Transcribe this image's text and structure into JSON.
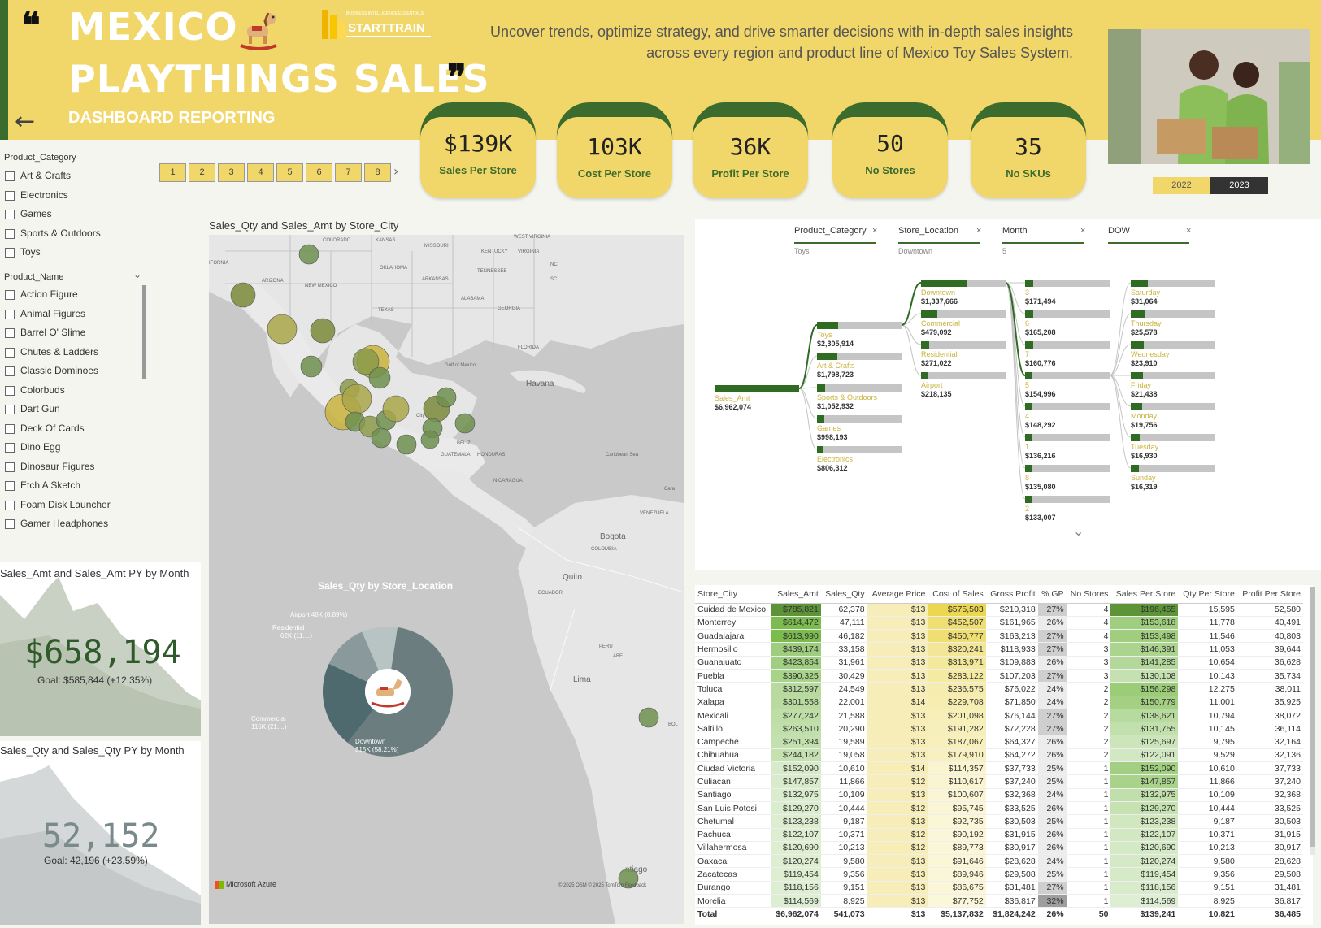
{
  "header": {
    "title_line1": "MEXICO",
    "title_line2": "PLAYTHINGS SALES",
    "subtitle": "DASHBOARD REPORTING",
    "logo_small": "BUSINESS INTELLIGENCE ESSENTIALS",
    "logo_text": "STARTTRAIN",
    "tagline": "Uncover trends, optimize strategy, and drive smarter decisions with in-depth sales insights across every region and product line of Mexico Toy Sales System.",
    "quote_open": "❝",
    "quote_close": "❞",
    "back_icon": "←"
  },
  "year_slicer": {
    "options": [
      "2022",
      "2023"
    ],
    "selected": "2023"
  },
  "kpis": [
    {
      "value": "$139K",
      "label": "Sales Per Store"
    },
    {
      "value": "103K",
      "label": "Cost Per Store"
    },
    {
      "value": "36K",
      "label": "Profit Per Store"
    },
    {
      "value": "50",
      "label": "No Stores"
    },
    {
      "value": "35",
      "label": "No SKUs"
    }
  ],
  "page_nav": {
    "pages": [
      "1",
      "2",
      "3",
      "4",
      "5",
      "6",
      "7",
      "8"
    ],
    "next_icon": "›"
  },
  "slicers": {
    "category_title": "Product_Category",
    "categories": [
      "Art & Crafts",
      "Electronics",
      "Games",
      "Sports & Outdoors",
      "Toys"
    ],
    "product_title": "Product_Name",
    "products": [
      "Action Figure",
      "Animal Figures",
      "Barrel O' Slime",
      "Chutes & Ladders",
      "Classic Dominoes",
      "Colorbuds",
      "Dart Gun",
      "Deck Of Cards",
      "Dino Egg",
      "Dinosaur Figures",
      "Etch A Sketch",
      "Foam Disk Launcher",
      "Gamer Headphones"
    ]
  },
  "sales_card": {
    "title": "Sales_Amt and Sales_Amt PY by Month",
    "value": "$658,194",
    "goal": "Goal: $585,844 (+12.35%)"
  },
  "qty_card": {
    "title": "Sales_Qty and Sales_Qty PY by Month",
    "value": "52,152",
    "goal": "Goal: 42,196 (+23.59%)"
  },
  "map": {
    "title": "Sales_Qty and Sales_Amt by Store_City",
    "labels": {
      "colorado": "COLORADO",
      "kansas": "KANSAS",
      "missouri": "MISSOURI",
      "kentucky": "KENTUCKY",
      "virginia": "VIRGINIA",
      "west_virginia": "WEST VIRGINIA",
      "nc": "NC",
      "oklahoma": "OKLAHOMA",
      "arkansas": "ARKANSAS",
      "tennessee": "TENNESSEE",
      "sc": "SC",
      "arizona": "ARIZONA",
      "new_mexico": "NEW MEXICO",
      "alabama": "ALABAMA",
      "georgia": "GEORGIA",
      "texas": "TEXAS",
      "california": "IFORNIA",
      "florida": "FLORIDA",
      "gulf": "Gulf of Mexico",
      "havana": "Havana",
      "city": "City",
      "caribbean": "Caribbean Sea",
      "bogota": "Bogota",
      "colombia": "COLOMBIA",
      "venezuela": "VENEZUELA",
      "quito": "Quito",
      "ecuador": "ECUADOR",
      "lima": "Lima",
      "peru": "PERU",
      "santiago": "ntiago",
      "guatemala": "GUATEMALA",
      "honduras": "HONDURAS",
      "nicaragua": "NICARAGUA",
      "belize": "BELIZ",
      "bol": "BOL",
      "cara": "Cara",
      "ab": "ABE"
    },
    "azure": "Microsoft Azure",
    "attribution": "© 2025 OSM  © 2025 TomTom  Feedback"
  },
  "donut": {
    "title": "Sales_Qty by Store_Location",
    "labels": [
      "Airport 48K (8.89%)",
      "Residential",
      "62K (11....)",
      "Commercial",
      "116K (21....)",
      "Downtown",
      "315K (58.21%)"
    ]
  },
  "chart_data": {
    "type": "pie",
    "title": "Sales_Qty by Store_Location",
    "categories": [
      "Downtown",
      "Commercial",
      "Residential",
      "Airport"
    ],
    "values": [
      315,
      116,
      62,
      48
    ],
    "percent": [
      58.21,
      21,
      11,
      8.89
    ],
    "colors": [
      "#6b7d7f",
      "#4f6a6e",
      "#8a9a9c",
      "#b8c4c4"
    ]
  },
  "decomp": {
    "headers": [
      {
        "title": "Product_Category",
        "sub": "Toys"
      },
      {
        "title": "Store_Location",
        "sub": "Downtown"
      },
      {
        "title": "Month",
        "sub": "5"
      },
      {
        "title": "DOW",
        "sub": ""
      }
    ],
    "root": {
      "label": "Sales_Amt",
      "value": "$6,962,074"
    },
    "col1": [
      {
        "label": "Toys",
        "value": "$2,305,914",
        "f": 0.25
      },
      {
        "label": "Art & Crafts",
        "value": "$1,798,723",
        "f": 0.24
      },
      {
        "label": "Sports & Outdoors",
        "value": "$1,052,932",
        "f": 0.1
      },
      {
        "label": "Games",
        "value": "$998,193",
        "f": 0.09
      },
      {
        "label": "Electronics",
        "value": "$806,312",
        "f": 0.07
      }
    ],
    "col2": [
      {
        "label": "Downtown",
        "value": "$1,337,666",
        "f": 0.55
      },
      {
        "label": "Commercial",
        "value": "$479,092",
        "f": 0.19
      },
      {
        "label": "Residential",
        "value": "$271,022",
        "f": 0.1
      },
      {
        "label": "Airport",
        "value": "$218,135",
        "f": 0.08
      }
    ],
    "col3": [
      {
        "label": "3",
        "value": "$171,494",
        "f": 0.1
      },
      {
        "label": "6",
        "value": "$165,208",
        "f": 0.1
      },
      {
        "label": "7",
        "value": "$160,776",
        "f": 0.1
      },
      {
        "label": "5",
        "value": "$154,996",
        "f": 0.09
      },
      {
        "label": "4",
        "value": "$148,292",
        "f": 0.09
      },
      {
        "label": "1",
        "value": "$136,216",
        "f": 0.08
      },
      {
        "label": "8",
        "value": "$135,080",
        "f": 0.08
      },
      {
        "label": "2",
        "value": "$133,007",
        "f": 0.08
      }
    ],
    "col4": [
      {
        "label": "Saturday",
        "value": "$31,064",
        "f": 0.2
      },
      {
        "label": "Thursday",
        "value": "$25,578",
        "f": 0.16
      },
      {
        "label": "Wednesday",
        "value": "$23,910",
        "f": 0.15
      },
      {
        "label": "Friday",
        "value": "$21,438",
        "f": 0.14
      },
      {
        "label": "Monday",
        "value": "$19,756",
        "f": 0.13
      },
      {
        "label": "Tuesday",
        "value": "$16,930",
        "f": 0.11
      },
      {
        "label": "Sunday",
        "value": "$16,319",
        "f": 0.1
      }
    ],
    "close_icon": "×",
    "expand_icon": "⌄"
  },
  "table": {
    "columns": [
      "Store_City",
      "Sales_Amt",
      "Sales_Qty",
      "Average Price",
      "Cost of Sales",
      "Gross Profit",
      "% GP",
      "No Stores",
      "Sales Per Store",
      "Qty Per Store",
      "Profit Per Store"
    ],
    "rows": [
      [
        "Cuidad de Mexico",
        "$785,821",
        "62,378",
        "$13",
        "$575,503",
        "$210,318",
        "27%",
        "4",
        "$196,455",
        "15,595",
        "52,580"
      ],
      [
        "Monterrey",
        "$614,472",
        "47,111",
        "$13",
        "$452,507",
        "$161,965",
        "26%",
        "4",
        "$153,618",
        "11,778",
        "40,491"
      ],
      [
        "Guadalajara",
        "$613,990",
        "46,182",
        "$13",
        "$450,777",
        "$163,213",
        "27%",
        "4",
        "$153,498",
        "11,546",
        "40,803"
      ],
      [
        "Hermosillo",
        "$439,174",
        "33,158",
        "$13",
        "$320,241",
        "$118,933",
        "27%",
        "3",
        "$146,391",
        "11,053",
        "39,644"
      ],
      [
        "Guanajuato",
        "$423,854",
        "31,961",
        "$13",
        "$313,971",
        "$109,883",
        "26%",
        "3",
        "$141,285",
        "10,654",
        "36,628"
      ],
      [
        "Puebla",
        "$390,325",
        "30,429",
        "$13",
        "$283,122",
        "$107,203",
        "27%",
        "3",
        "$130,108",
        "10,143",
        "35,734"
      ],
      [
        "Toluca",
        "$312,597",
        "24,549",
        "$13",
        "$236,575",
        "$76,022",
        "24%",
        "2",
        "$156,298",
        "12,275",
        "38,011"
      ],
      [
        "Xalapa",
        "$301,558",
        "22,001",
        "$14",
        "$229,708",
        "$71,850",
        "24%",
        "2",
        "$150,779",
        "11,001",
        "35,925"
      ],
      [
        "Mexicali",
        "$277,242",
        "21,588",
        "$13",
        "$201,098",
        "$76,144",
        "27%",
        "2",
        "$138,621",
        "10,794",
        "38,072"
      ],
      [
        "Saltillo",
        "$263,510",
        "20,290",
        "$13",
        "$191,282",
        "$72,228",
        "27%",
        "2",
        "$131,755",
        "10,145",
        "36,114"
      ],
      [
        "Campeche",
        "$251,394",
        "19,589",
        "$13",
        "$187,067",
        "$64,327",
        "26%",
        "2",
        "$125,697",
        "9,795",
        "32,164"
      ],
      [
        "Chihuahua",
        "$244,182",
        "19,058",
        "$13",
        "$179,910",
        "$64,272",
        "26%",
        "2",
        "$122,091",
        "9,529",
        "32,136"
      ],
      [
        "Ciudad Victoria",
        "$152,090",
        "10,610",
        "$14",
        "$114,357",
        "$37,733",
        "25%",
        "1",
        "$152,090",
        "10,610",
        "37,733"
      ],
      [
        "Culiacan",
        "$147,857",
        "11,866",
        "$12",
        "$110,617",
        "$37,240",
        "25%",
        "1",
        "$147,857",
        "11,866",
        "37,240"
      ],
      [
        "Santiago",
        "$132,975",
        "10,109",
        "$13",
        "$100,607",
        "$32,368",
        "24%",
        "1",
        "$132,975",
        "10,109",
        "32,368"
      ],
      [
        "San Luis Potosi",
        "$129,270",
        "10,444",
        "$12",
        "$95,745",
        "$33,525",
        "26%",
        "1",
        "$129,270",
        "10,444",
        "33,525"
      ],
      [
        "Chetumal",
        "$123,238",
        "9,187",
        "$13",
        "$92,735",
        "$30,503",
        "25%",
        "1",
        "$123,238",
        "9,187",
        "30,503"
      ],
      [
        "Pachuca",
        "$122,107",
        "10,371",
        "$12",
        "$90,192",
        "$31,915",
        "26%",
        "1",
        "$122,107",
        "10,371",
        "31,915"
      ],
      [
        "Villahermosa",
        "$120,690",
        "10,213",
        "$12",
        "$89,773",
        "$30,917",
        "26%",
        "1",
        "$120,690",
        "10,213",
        "30,917"
      ],
      [
        "Oaxaca",
        "$120,274",
        "9,580",
        "$13",
        "$91,646",
        "$28,628",
        "24%",
        "1",
        "$120,274",
        "9,580",
        "28,628"
      ],
      [
        "Zacatecas",
        "$119,454",
        "9,356",
        "$13",
        "$89,946",
        "$29,508",
        "25%",
        "1",
        "$119,454",
        "9,356",
        "29,508"
      ],
      [
        "Durango",
        "$118,156",
        "9,151",
        "$13",
        "$86,675",
        "$31,481",
        "27%",
        "1",
        "$118,156",
        "9,151",
        "31,481"
      ],
      [
        "Morelia",
        "$114,569",
        "8,925",
        "$13",
        "$77,752",
        "$36,817",
        "32%",
        "1",
        "$114,569",
        "8,925",
        "36,817"
      ]
    ],
    "total": [
      "Total",
      "$6,962,074",
      "541,073",
      "$13",
      "$5,137,832",
      "$1,824,242",
      "26%",
      "50",
      "$139,241",
      "10,821",
      "36,485"
    ]
  },
  "colors": {
    "yellow": "#f1d76a",
    "green": "#3c6b2e",
    "map_bg": "#d6d6d6"
  }
}
